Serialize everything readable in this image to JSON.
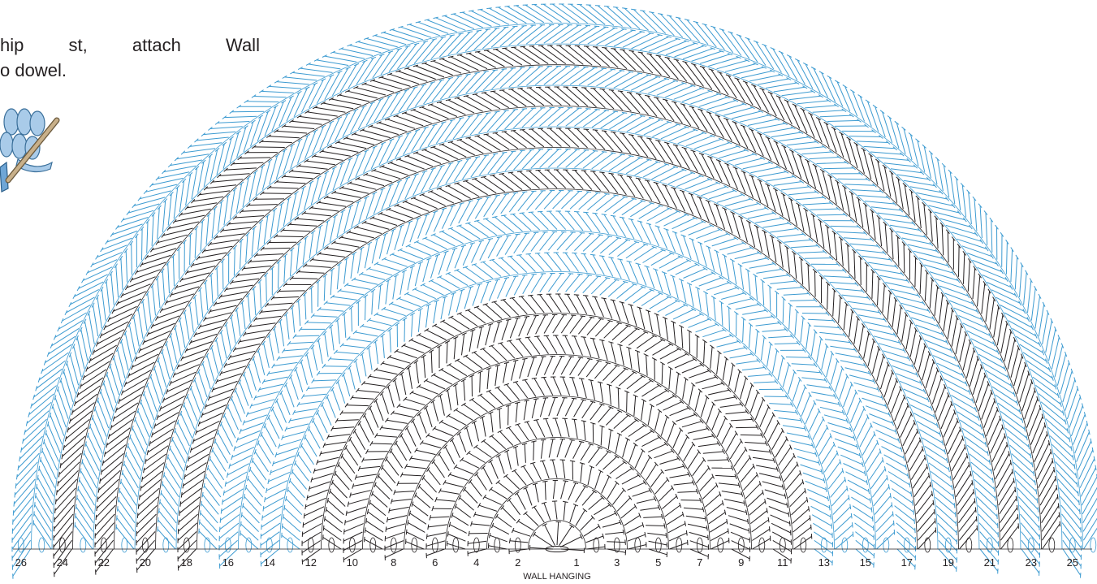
{
  "intro": {
    "line1_words": [
      "hip",
      "st,",
      "attach",
      "Wall"
    ],
    "line2": "o dowel."
  },
  "diagram": {
    "title": "WALL HANGING",
    "row_labels_left": [
      "26",
      "24",
      "22",
      "20",
      "18",
      "16",
      "14",
      "12",
      "10",
      "8",
      "6",
      "4",
      "2"
    ],
    "row_labels_right": [
      "1",
      "3",
      "5",
      "7",
      "9",
      "11",
      "13",
      "15",
      "17",
      "19",
      "21",
      "23",
      "25"
    ],
    "colors": {
      "blue_rows": "#3d9bd1",
      "black_rows": "#231f20",
      "yarn_light": "#a9cbe9",
      "dowel": "#c8b08a"
    },
    "row_count": 26
  }
}
